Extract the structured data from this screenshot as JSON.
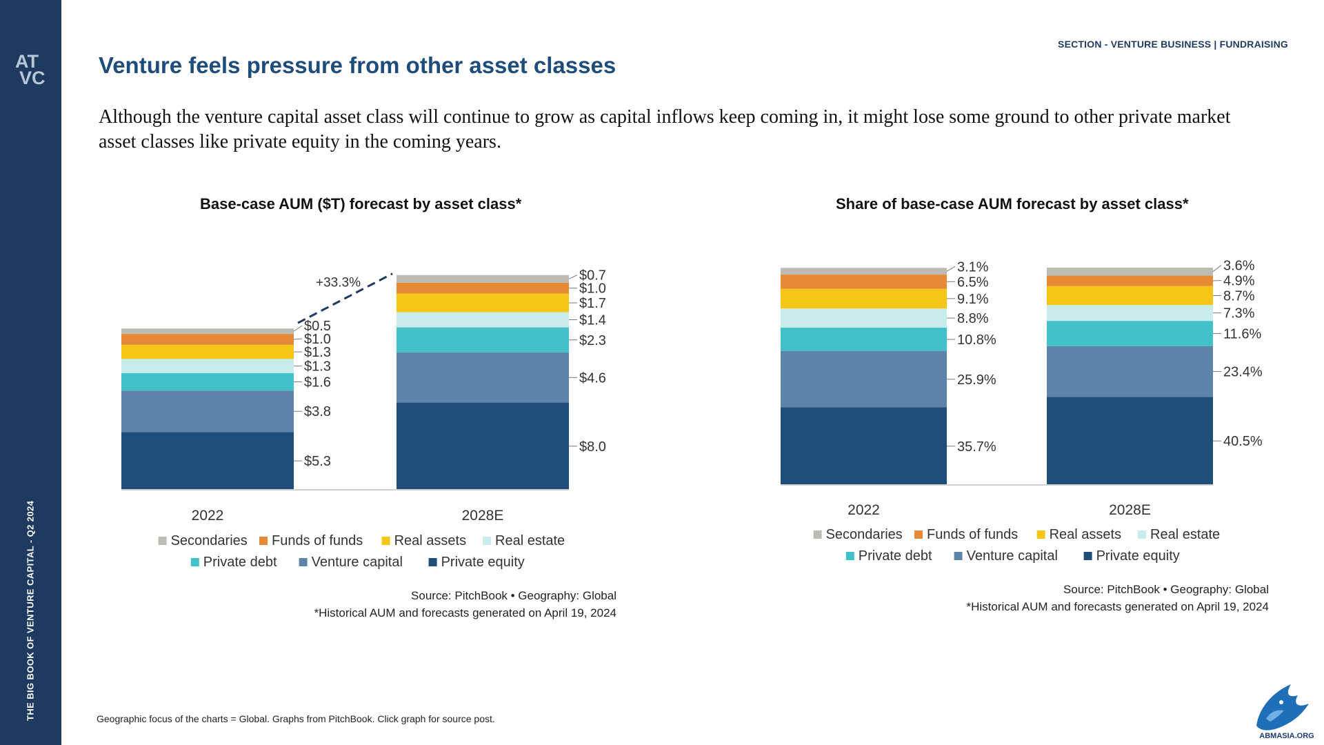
{
  "sidebar": {
    "logo_lines": [
      "AT",
      "VC"
    ],
    "vertical_text": "THE BIG BOOK OF VENTURE CAPITAL - Q2 2024"
  },
  "header": {
    "section_label": "SECTION - VENTURE BUSINESS | FUNDRAISING",
    "title": "Venture feels pressure from other asset classes",
    "intro": "Although the venture capital asset class will continue to grow as capital inflows keep coming in, it might lose some ground to other private market asset classes like private equity in the coming years."
  },
  "footer": {
    "note": "Geographic focus of the charts = Global. Graphs from PitchBook. Click graph for source post.",
    "badge_text": "ABMASIA.ORG"
  },
  "colors": {
    "sidebar": "#1e3a5f",
    "title": "#1e4d7b",
    "Private equity": "#1f4e7a",
    "Venture capital": "#5f84aa",
    "Private debt": "#42c1c9",
    "Real estate": "#c8ecec",
    "Real assets": "#f5c518",
    "Funds of funds": "#e68a35",
    "Secondaries": "#bdbcb4"
  },
  "chart_data": [
    {
      "type": "bar",
      "stacked": true,
      "title": "Base-case AUM ($T) forecast by asset class*",
      "categories": [
        "2022",
        "2028E"
      ],
      "series": [
        {
          "name": "Private equity",
          "values": [
            5.3,
            8.0
          ],
          "labels": [
            "$5.3",
            "$8.0"
          ]
        },
        {
          "name": "Venture capital",
          "values": [
            3.8,
            4.6
          ],
          "labels": [
            "$3.8",
            "$4.6"
          ]
        },
        {
          "name": "Private debt",
          "values": [
            1.6,
            2.3
          ],
          "labels": [
            "$1.6",
            "$2.3"
          ]
        },
        {
          "name": "Real estate",
          "values": [
            1.3,
            1.4
          ],
          "labels": [
            "$1.3",
            "$1.4"
          ]
        },
        {
          "name": "Real assets",
          "values": [
            1.3,
            1.7
          ],
          "labels": [
            "$1.3",
            "$1.7"
          ]
        },
        {
          "name": "Funds of funds",
          "values": [
            1.0,
            1.0
          ],
          "labels": [
            "$1.0",
            "$1.0"
          ]
        },
        {
          "name": "Secondaries",
          "values": [
            0.5,
            0.7
          ],
          "labels": [
            "$0.5",
            "$0.7"
          ]
        }
      ],
      "annotation": "+33.3%",
      "legend": {
        "position": "bottom",
        "rows": [
          [
            "Secondaries",
            "Funds of funds",
            "Real assets",
            "Real estate"
          ],
          [
            "Private debt",
            "Venture capital",
            "Private equity"
          ]
        ]
      },
      "source_lines": [
        "Source: PitchBook  •  Geography: Global",
        "*Historical AUM and forecasts generated on April 19, 2024"
      ]
    },
    {
      "type": "bar",
      "stacked": true,
      "title": "Share of base-case AUM forecast by asset class*",
      "categories": [
        "2022",
        "2028E"
      ],
      "series": [
        {
          "name": "Private equity",
          "values": [
            35.7,
            40.5
          ],
          "labels": [
            "35.7%",
            "40.5%"
          ]
        },
        {
          "name": "Venture capital",
          "values": [
            25.9,
            23.4
          ],
          "labels": [
            "25.9%",
            "23.4%"
          ]
        },
        {
          "name": "Private debt",
          "values": [
            10.8,
            11.6
          ],
          "labels": [
            "10.8%",
            "11.6%"
          ]
        },
        {
          "name": "Real estate",
          "values": [
            8.8,
            7.3
          ],
          "labels": [
            "8.8%",
            "7.3%"
          ]
        },
        {
          "name": "Real assets",
          "values": [
            9.1,
            8.7
          ],
          "labels": [
            "9.1%",
            "8.7%"
          ]
        },
        {
          "name": "Funds of funds",
          "values": [
            6.5,
            4.9
          ],
          "labels": [
            "6.5%",
            "4.9%"
          ]
        },
        {
          "name": "Secondaries",
          "values": [
            3.1,
            3.6
          ],
          "labels": [
            "3.1%",
            "3.6%"
          ]
        }
      ],
      "legend": {
        "position": "bottom",
        "rows": [
          [
            "Secondaries",
            "Funds of funds",
            "Real assets",
            "Real estate"
          ],
          [
            "Private debt",
            "Venture capital",
            "Private equity"
          ]
        ]
      },
      "source_lines": [
        "Source: PitchBook  •  Geography: Global",
        "*Historical AUM and forecasts generated on April 19, 2024"
      ]
    }
  ]
}
